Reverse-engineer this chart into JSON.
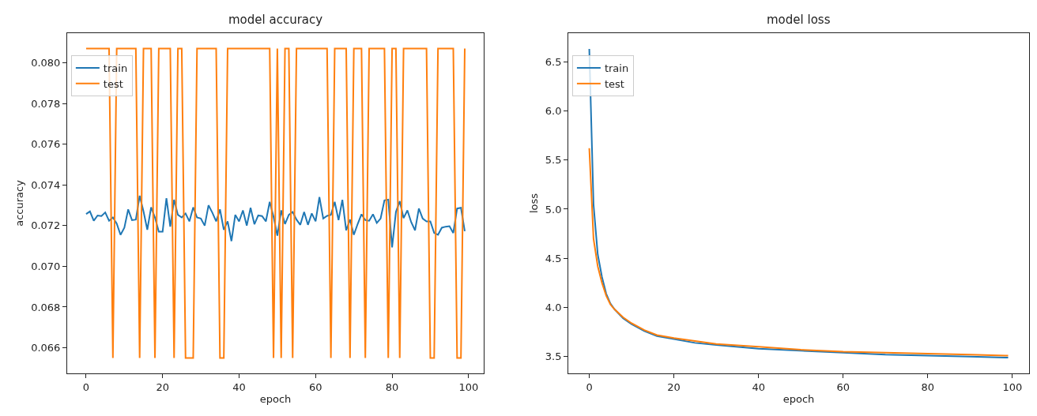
{
  "chart_data": [
    {
      "type": "line",
      "title": "model accuracy",
      "xlabel": "epoch",
      "ylabel": "accuracy",
      "legend": "top left",
      "x": [
        0,
        1,
        2,
        3,
        4,
        5,
        6,
        7,
        8,
        9,
        10,
        11,
        12,
        13,
        14,
        15,
        16,
        17,
        18,
        19,
        20,
        21,
        22,
        23,
        24,
        25,
        26,
        27,
        28,
        29,
        30,
        31,
        32,
        33,
        34,
        35,
        36,
        37,
        38,
        39,
        40,
        41,
        42,
        43,
        44,
        45,
        46,
        47,
        48,
        49,
        50,
        51,
        52,
        53,
        54,
        55,
        56,
        57,
        58,
        59,
        60,
        61,
        62,
        63,
        64,
        65,
        66,
        67,
        68,
        69,
        70,
        71,
        72,
        73,
        74,
        75,
        76,
        77,
        78,
        79,
        80,
        81,
        82,
        83,
        84,
        85,
        86,
        87,
        88,
        89,
        90,
        91,
        92,
        93,
        94,
        95,
        96,
        97,
        98,
        99
      ],
      "xlim": [
        -4.95,
        103.95
      ],
      "xticks": [
        0,
        20,
        40,
        60,
        80,
        100
      ],
      "ylim": [
        0.06474,
        0.08146
      ],
      "yticks": [
        {
          "value": 0.066,
          "label": "0.066"
        },
        {
          "value": 0.068,
          "label": "0.068"
        },
        {
          "value": 0.07,
          "label": "0.070"
        },
        {
          "value": 0.072,
          "label": "0.072"
        },
        {
          "value": 0.074,
          "label": "0.074"
        },
        {
          "value": 0.076,
          "label": "0.076"
        },
        {
          "value": 0.078,
          "label": "0.078"
        },
        {
          "value": 0.08,
          "label": "0.080"
        }
      ],
      "series": [
        {
          "name": "train",
          "color": "#1f77b4",
          "values": [
            0.07257,
            0.0727,
            0.07224,
            0.0725,
            0.07247,
            0.07265,
            0.07224,
            0.0724,
            0.0721,
            0.07155,
            0.0719,
            0.0728,
            0.07227,
            0.0723,
            0.07347,
            0.0727,
            0.0718,
            0.0729,
            0.0724,
            0.0717,
            0.0717,
            0.07335,
            0.07195,
            0.07327,
            0.07253,
            0.0724,
            0.0726,
            0.07221,
            0.0729,
            0.0724,
            0.07235,
            0.072,
            0.073,
            0.07264,
            0.07221,
            0.0728,
            0.0718,
            0.07221,
            0.07124,
            0.07253,
            0.07221,
            0.07275,
            0.072,
            0.07288,
            0.07207,
            0.0725,
            0.07247,
            0.07221,
            0.07317,
            0.07244,
            0.07151,
            0.07275,
            0.07208,
            0.07253,
            0.07267,
            0.0723,
            0.07204,
            0.07267,
            0.07204,
            0.0726,
            0.07221,
            0.0734,
            0.07235,
            0.07248,
            0.07253,
            0.07317,
            0.07227,
            0.07327,
            0.07177,
            0.0723,
            0.07155,
            0.07208,
            0.07256,
            0.07227,
            0.07224,
            0.07256,
            0.07213,
            0.07235,
            0.07324,
            0.07328,
            0.07093,
            0.07267,
            0.0732,
            0.07237,
            0.07275,
            0.07217,
            0.07177,
            0.07284,
            0.07235,
            0.07221,
            0.07221,
            0.07164,
            0.07155,
            0.0719,
            0.07195,
            0.07197,
            0.07164,
            0.07284,
            0.07288,
            0.07173
          ]
        },
        {
          "name": "test",
          "color": "#ff7f0e",
          "values": [
            0.0807,
            0.0807,
            0.0807,
            0.0807,
            0.0807,
            0.0807,
            0.0807,
            0.0655,
            0.0807,
            0.0807,
            0.0807,
            0.0807,
            0.0807,
            0.0807,
            0.0655,
            0.0807,
            0.0807,
            0.0807,
            0.0655,
            0.0807,
            0.0807,
            0.0807,
            0.0807,
            0.0655,
            0.0807,
            0.0807,
            0.0655,
            0.0655,
            0.0655,
            0.0807,
            0.0807,
            0.0807,
            0.0807,
            0.0807,
            0.0807,
            0.0655,
            0.0655,
            0.0807,
            0.0807,
            0.0807,
            0.0807,
            0.0807,
            0.0807,
            0.0807,
            0.0807,
            0.0807,
            0.0807,
            0.0807,
            0.0807,
            0.0655,
            0.0807,
            0.0655,
            0.0807,
            0.0807,
            0.0655,
            0.0807,
            0.0807,
            0.0807,
            0.0807,
            0.0807,
            0.0807,
            0.0807,
            0.0807,
            0.0807,
            0.0655,
            0.0807,
            0.0807,
            0.0807,
            0.0807,
            0.0655,
            0.0807,
            0.0807,
            0.0807,
            0.0655,
            0.0807,
            0.0807,
            0.0807,
            0.0807,
            0.0807,
            0.0655,
            0.0807,
            0.0807,
            0.0655,
            0.0807,
            0.0807,
            0.0807,
            0.0807,
            0.0807,
            0.0807,
            0.0807,
            0.0655,
            0.0655,
            0.0807,
            0.0807,
            0.0807,
            0.0807,
            0.0807,
            0.0655,
            0.0655,
            0.0807
          ]
        }
      ]
    },
    {
      "type": "line",
      "title": "model loss",
      "xlabel": "epoch",
      "ylabel": "loss",
      "legend": "top left",
      "xlim": [
        -4.95,
        103.95
      ],
      "xticks": [
        0,
        20,
        40,
        60,
        80,
        100
      ],
      "ylim": [
        3.33,
        6.79
      ],
      "yticks": [
        {
          "value": 3.5,
          "label": "3.5"
        },
        {
          "value": 4.0,
          "label": "4.0"
        },
        {
          "value": 4.5,
          "label": "4.5"
        },
        {
          "value": 5.0,
          "label": "5.0"
        },
        {
          "value": 5.5,
          "label": "5.5"
        },
        {
          "value": 6.0,
          "label": "6.0"
        },
        {
          "value": 6.5,
          "label": "6.5"
        }
      ],
      "series": [
        {
          "name": "train",
          "color": "#1f77b4",
          "x": [
            0,
            1,
            2,
            3,
            4,
            5,
            6,
            8,
            10,
            13,
            16,
            20,
            25,
            30,
            40,
            50,
            60,
            70,
            80,
            90,
            99
          ],
          "values": [
            6.63,
            5.05,
            4.54,
            4.31,
            4.14,
            4.04,
            3.98,
            3.89,
            3.83,
            3.76,
            3.71,
            3.68,
            3.64,
            3.62,
            3.58,
            3.56,
            3.54,
            3.52,
            3.51,
            3.5,
            3.49
          ]
        },
        {
          "name": "test",
          "color": "#ff7f0e",
          "x": [
            0,
            1,
            2,
            3,
            4,
            5,
            6,
            8,
            10,
            13,
            16,
            20,
            25,
            30,
            40,
            50,
            60,
            70,
            80,
            90,
            99
          ],
          "values": [
            5.62,
            4.7,
            4.42,
            4.25,
            4.12,
            4.03,
            3.98,
            3.9,
            3.84,
            3.77,
            3.72,
            3.69,
            3.66,
            3.63,
            3.6,
            3.57,
            3.55,
            3.54,
            3.53,
            3.52,
            3.51
          ]
        }
      ]
    }
  ]
}
